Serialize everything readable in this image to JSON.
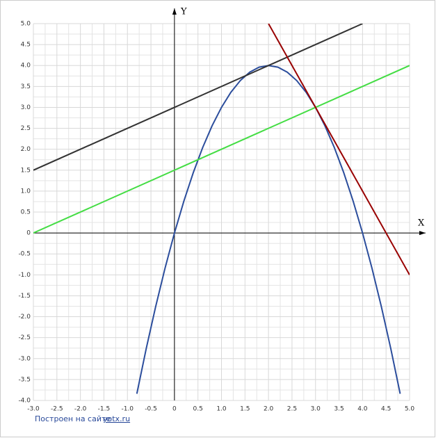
{
  "chart_data": {
    "type": "line",
    "x_label": "X",
    "y_label": "Y",
    "xlim": [
      -3,
      5
    ],
    "ylim": [
      -4,
      5
    ],
    "xticks": [
      {
        "value": -3,
        "label": "-3.0"
      },
      -2.5,
      {
        "value": -2,
        "label": "-2.0"
      },
      -1.5,
      {
        "value": -1,
        "label": "-1.0"
      },
      -0.5,
      0,
      0.5,
      {
        "value": 1,
        "label": "1.0"
      },
      1.5,
      {
        "value": 2,
        "label": "2.0"
      },
      2.5,
      {
        "value": 3,
        "label": "3.0"
      },
      3.5,
      {
        "value": 4,
        "label": "4.0"
      },
      4.5,
      {
        "value": 5,
        "label": "5.0"
      }
    ],
    "yticks": [
      {
        "value": 5,
        "label": "5.0"
      },
      4.5,
      {
        "value": 4,
        "label": "4.0"
      },
      3.5,
      {
        "value": 3,
        "label": "3.0"
      },
      2.5,
      {
        "value": 2,
        "label": "2.0"
      },
      1.5,
      {
        "value": 1,
        "label": "1.0"
      },
      0.5,
      0,
      -0.5,
      {
        "value": -1,
        "label": "-1.0"
      },
      -1.5,
      {
        "value": -2,
        "label": "-2.0"
      },
      -2.5,
      {
        "value": -3,
        "label": "-3.0"
      },
      -3.5,
      {
        "value": -4,
        "label": "-4.0"
      }
    ],
    "grid": true,
    "series": [
      {
        "color": "#2b4d9c",
        "x": [
          -0.8,
          -0.6,
          -0.4,
          -0.2,
          0,
          0.2,
          0.4,
          0.6,
          0.8,
          1.0,
          1.2,
          1.4,
          1.6,
          1.8,
          2.0,
          2.2,
          2.4,
          2.6,
          2.8,
          3.0,
          3.2,
          3.4,
          3.6,
          3.8,
          4.0,
          4.2,
          4.4,
          4.6,
          4.8
        ],
        "values": [
          -3.84,
          -2.76,
          -1.76,
          -0.84,
          0,
          0.76,
          1.44,
          2.04,
          2.56,
          3,
          3.36,
          3.64,
          3.84,
          3.96,
          4,
          3.96,
          3.84,
          3.64,
          3.36,
          3,
          2.56,
          2.04,
          1.44,
          0.76,
          0,
          -0.84,
          -1.76,
          -2.76,
          -3.84
        ]
      },
      {
        "color": "#333333",
        "x": [
          -3,
          4
        ],
        "values": [
          1.5,
          5
        ]
      },
      {
        "color": "#44dd44",
        "x": [
          -3,
          5
        ],
        "values": [
          0,
          4
        ]
      },
      {
        "color": "#990000",
        "x": [
          2,
          5
        ],
        "values": [
          5,
          -1
        ]
      }
    ],
    "footer": {
      "text": "Построен на сайте",
      "link": "yotx.ru"
    }
  }
}
